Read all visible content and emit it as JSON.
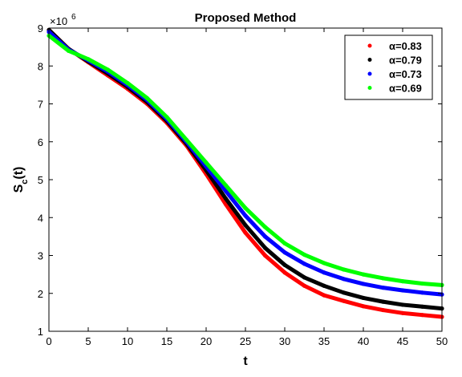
{
  "chart_data": {
    "type": "line",
    "title": "Proposed Method",
    "xlabel": "t",
    "ylabel_main": "S",
    "ylabel_sub": "c",
    "ylabel_tail": "(t)",
    "y_multiplier": "×10",
    "y_multiplier_exp": "6",
    "xlim": [
      0,
      50
    ],
    "ylim": [
      1,
      9
    ],
    "x_ticks": [
      "0",
      "5",
      "10",
      "15",
      "20",
      "25",
      "30",
      "35",
      "40",
      "45",
      "50"
    ],
    "y_ticks": [
      "1",
      "2",
      "3",
      "4",
      "5",
      "6",
      "7",
      "8",
      "9"
    ],
    "grid": false,
    "legend_position": "top-right",
    "x": [
      0,
      2.5,
      5,
      7.5,
      10,
      12.5,
      15,
      17.5,
      20,
      22.5,
      25,
      27.5,
      30,
      32.5,
      35,
      37.5,
      40,
      42.5,
      45,
      47.5,
      50
    ],
    "series": [
      {
        "name": "α=0.83",
        "color": "#ff0000",
        "values": [
          8.95,
          8.45,
          8.1,
          7.75,
          7.4,
          7.0,
          6.5,
          5.9,
          5.15,
          4.35,
          3.6,
          3.0,
          2.55,
          2.2,
          1.95,
          1.8,
          1.66,
          1.56,
          1.48,
          1.43,
          1.38
        ]
      },
      {
        "name": "α=0.79",
        "color": "#000000",
        "values": [
          8.95,
          8.45,
          8.12,
          7.8,
          7.45,
          7.05,
          6.55,
          5.95,
          5.25,
          4.5,
          3.8,
          3.2,
          2.75,
          2.42,
          2.2,
          2.02,
          1.88,
          1.78,
          1.7,
          1.65,
          1.6
        ]
      },
      {
        "name": "α=0.73",
        "color": "#0000ff",
        "values": [
          8.9,
          8.43,
          8.15,
          7.85,
          7.5,
          7.1,
          6.6,
          6.0,
          5.35,
          4.7,
          4.05,
          3.5,
          3.08,
          2.78,
          2.55,
          2.38,
          2.25,
          2.15,
          2.08,
          2.02,
          1.97
        ]
      },
      {
        "name": "α=0.69",
        "color": "#00ff00",
        "values": [
          8.8,
          8.4,
          8.18,
          7.9,
          7.55,
          7.15,
          6.65,
          6.05,
          5.45,
          4.85,
          4.25,
          3.75,
          3.32,
          3.02,
          2.8,
          2.63,
          2.5,
          2.4,
          2.32,
          2.26,
          2.22
        ]
      }
    ]
  }
}
